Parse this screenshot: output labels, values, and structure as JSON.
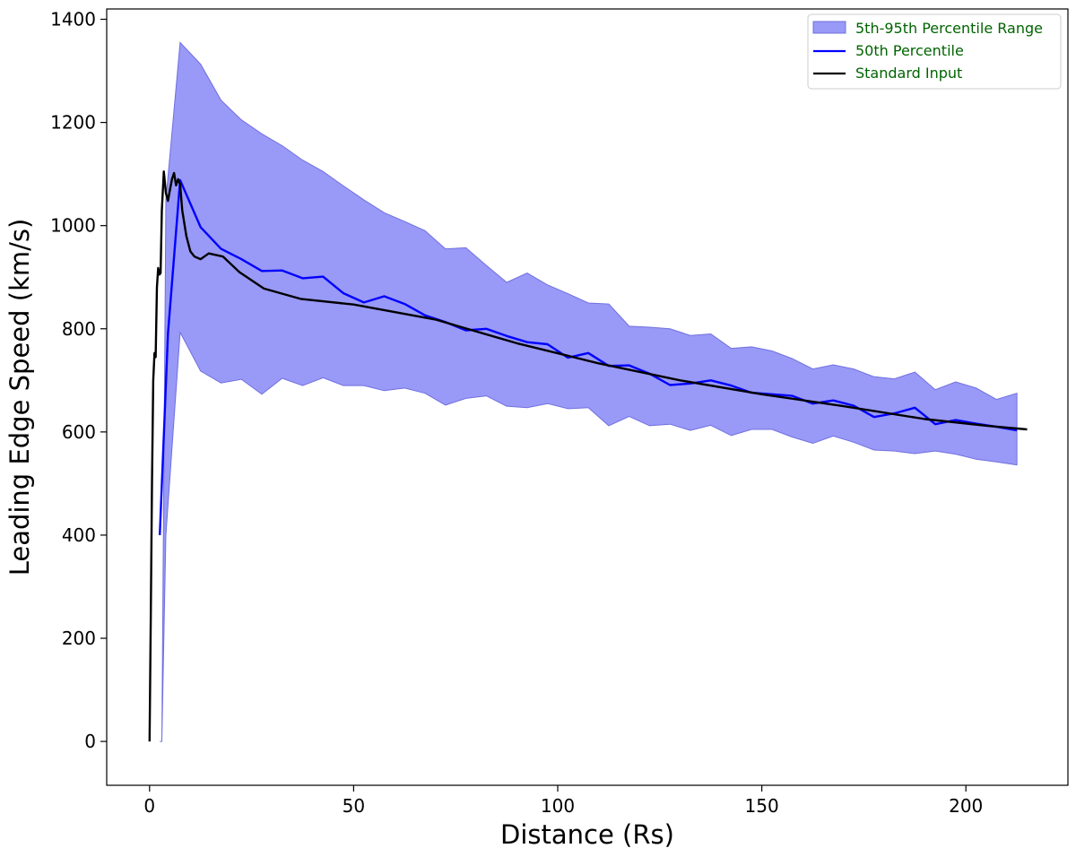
{
  "chart_data": {
    "type": "line",
    "title": "",
    "xlabel": "Distance (Rs)",
    "ylabel": "Leading Edge Speed (km/s)",
    "xlim": [
      -10.5,
      225
    ],
    "ylim": [
      -85,
      1420
    ],
    "xticks": [
      "0",
      "50",
      "100",
      "150",
      "200"
    ],
    "xtick_values": [
      0,
      50,
      100,
      150,
      200
    ],
    "yticks": [
      "0",
      "200",
      "400",
      "600",
      "800",
      "1000",
      "1200",
      "1400"
    ],
    "ytick_values": [
      0,
      200,
      400,
      600,
      800,
      1000,
      1200,
      1400
    ],
    "grid": false,
    "legend_position": "upper right",
    "legend_text_color": "#006400",
    "colors": {
      "band": "#8080f5",
      "band_edge": "#7070e0",
      "median": "#0000ff",
      "standard": "#000000"
    },
    "series": [
      {
        "name": "5th-95th Percentile Range",
        "kind": "band",
        "x": [
          2.5,
          3,
          4,
          7.5,
          12.5,
          17.5,
          22.5,
          27.5,
          32.5,
          37.5,
          42.5,
          47.5,
          52.5,
          57.5,
          62.5,
          67.5,
          72.5,
          77.5,
          82.5,
          87.5,
          92.5,
          97.5,
          102.5,
          107.5,
          112.5,
          117.5,
          122.5,
          127.5,
          132.5,
          137.5,
          142.5,
          147.5,
          152.5,
          157.5,
          162.5,
          167.5,
          172.5,
          177.5,
          182.5,
          187.5,
          192.5,
          197.5,
          202.5,
          207.5,
          212.5
        ],
        "lower": [
          0,
          0,
          400,
          793,
          718,
          695,
          702,
          673,
          704,
          690,
          705,
          690,
          690,
          680,
          685,
          675,
          652,
          665,
          670,
          650,
          647,
          655,
          645,
          647,
          612,
          630,
          612,
          615,
          603,
          613,
          593,
          605,
          605,
          590,
          578,
          592,
          580,
          565,
          563,
          558,
          563,
          557,
          547,
          542,
          536
        ],
        "upper": [
          0,
          0,
          1050,
          1355,
          1313,
          1243,
          1205,
          1178,
          1155,
          1127,
          1105,
          1077,
          1050,
          1025,
          1008,
          990,
          955,
          957,
          923,
          890,
          908,
          885,
          868,
          850,
          848,
          805,
          803,
          800,
          787,
          790,
          762,
          765,
          757,
          742,
          722,
          730,
          722,
          707,
          703,
          716,
          682,
          697,
          685,
          663,
          675
        ]
      },
      {
        "name": "50th Percentile",
        "kind": "line",
        "x": [
          2.5,
          4.5,
          7.5,
          12.5,
          17.5,
          22.5,
          27.5,
          32.5,
          37.5,
          42.5,
          47.5,
          52.5,
          57.5,
          62.5,
          67.5,
          72.5,
          77.5,
          82.5,
          87.5,
          92.5,
          97.5,
          102.5,
          107.5,
          112.5,
          117.5,
          122.5,
          127.5,
          132.5,
          137.5,
          142.5,
          147.5,
          152.5,
          157.5,
          162.5,
          167.5,
          172.5,
          177.5,
          182.5,
          187.5,
          192.5,
          197.5,
          202.5,
          207.5,
          212.5
        ],
        "y": [
          400,
          790,
          1088,
          997,
          955,
          935,
          912,
          913,
          898,
          901,
          869,
          851,
          863,
          848,
          826,
          813,
          797,
          800,
          786,
          774,
          770,
          744,
          753,
          728,
          729,
          713,
          691,
          694,
          700,
          690,
          676,
          673,
          670,
          655,
          661,
          651,
          629,
          636,
          647,
          615,
          623,
          616,
          610,
          603
        ]
      },
      {
        "name": "Standard Input",
        "kind": "line",
        "x": [
          0,
          0.3,
          0.6,
          0.9,
          1.2,
          1.5,
          1.8,
          2.1,
          2.4,
          2.7,
          3.0,
          3.5,
          4.0,
          4.5,
          5.0,
          5.5,
          6.0,
          6.5,
          7.0,
          7.5,
          8.0,
          9.0,
          10.0,
          11.0,
          12.5,
          14.5,
          18.0,
          22.0,
          28.0,
          37.0,
          50.0,
          70.0,
          90.0,
          110.0,
          130.0,
          150.0,
          170.0,
          190.0,
          205.0,
          215.0
        ],
        "y": [
          0,
          250,
          500,
          700,
          753,
          745,
          880,
          918,
          905,
          908,
          1030,
          1105,
          1063,
          1048,
          1070,
          1090,
          1102,
          1078,
          1090,
          1080,
          1030,
          980,
          950,
          940,
          935,
          946,
          940,
          910,
          878,
          858,
          847,
          818,
          772,
          733,
          700,
          673,
          650,
          625,
          612,
          605
        ]
      }
    ]
  }
}
